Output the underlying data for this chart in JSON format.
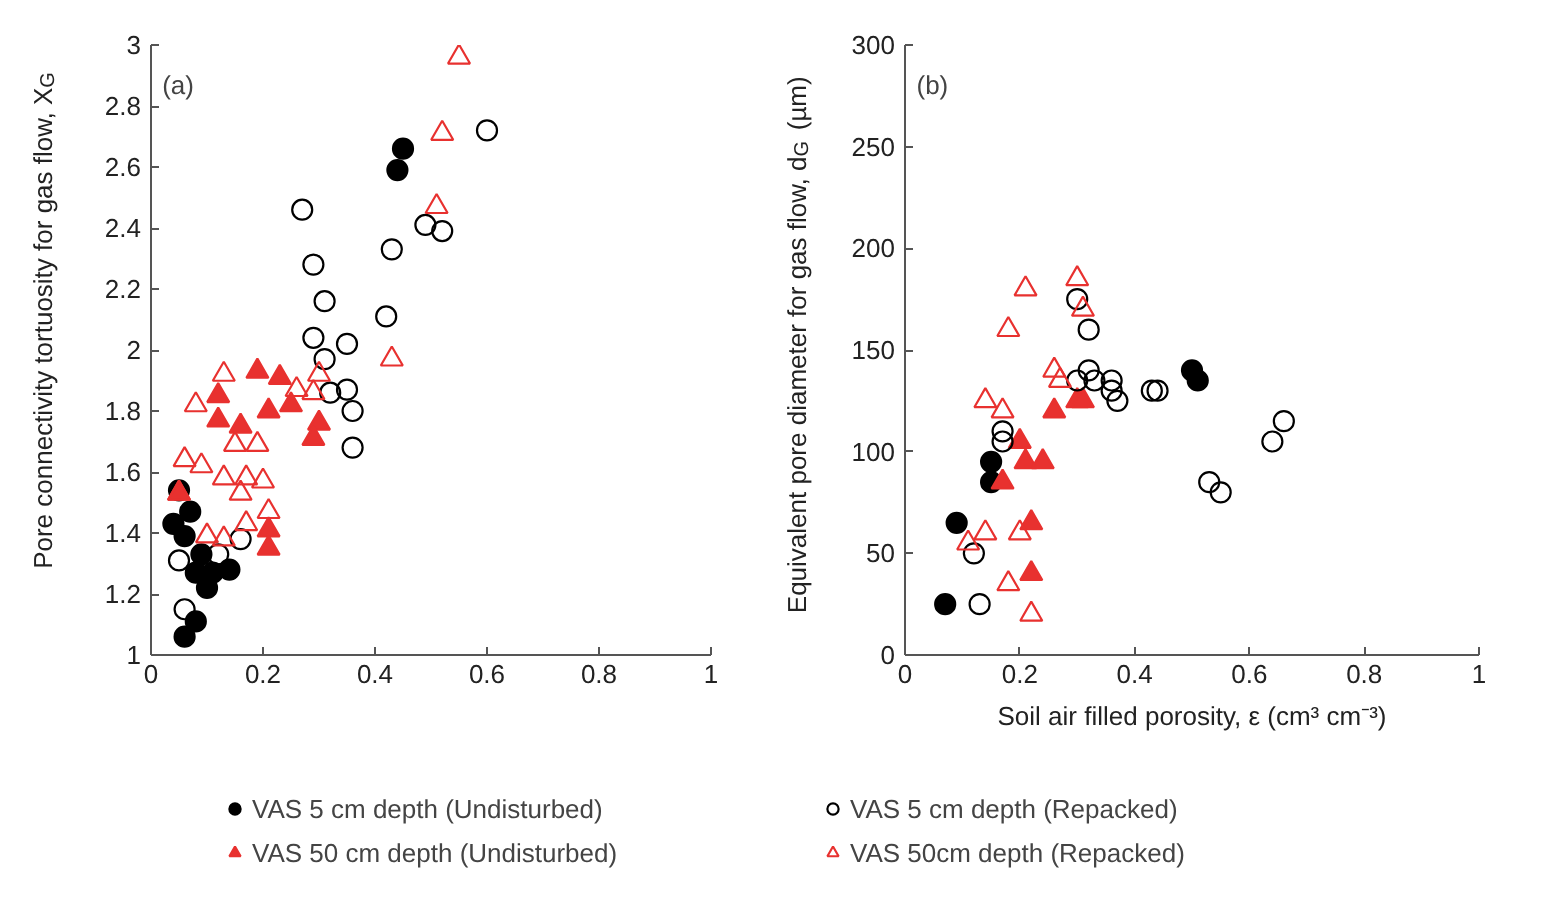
{
  "chart_data": [
    {
      "type": "scatter",
      "ylabel": "Pore connectivity tortuosity for gas flow, X$_{G}$",
      "annotations": [
        "(a)"
      ],
      "xlim": [
        0,
        1
      ],
      "ylim": [
        1,
        3
      ],
      "xticks": [
        0,
        0.2,
        0.4,
        0.6,
        0.8,
        1
      ],
      "yticks": [
        1,
        1.2,
        1.4,
        1.6,
        1.8,
        2,
        2.2,
        2.4,
        2.6,
        2.8,
        3
      ],
      "legend": "bottom",
      "series": [
        {
          "name": "VAS 5 cm depth (Undisturbed)",
          "color": "#000000",
          "marker": "circle",
          "x": [
            0.05,
            0.04,
            0.07,
            0.06,
            0.09,
            0.08,
            0.11,
            0.14,
            0.1,
            0.08,
            0.06,
            0.44,
            0.45
          ],
          "values": [
            1.54,
            1.43,
            1.47,
            1.39,
            1.33,
            1.27,
            1.27,
            1.28,
            1.22,
            1.11,
            1.06,
            2.59,
            2.66
          ]
        },
        {
          "name": "VAS 50 cm depth (Undisturbed)",
          "color": "#e8312f",
          "marker": "triangle",
          "x": [
            0.05,
            0.12,
            0.12,
            0.16,
            0.19,
            0.21,
            0.23,
            0.25,
            0.3,
            0.29,
            0.21,
            0.21
          ],
          "values": [
            1.53,
            1.77,
            1.85,
            1.75,
            1.93,
            1.8,
            1.91,
            1.82,
            1.76,
            1.71,
            1.41,
            1.35
          ]
        },
        {
          "color": "#000000",
          "marker": "circle",
          "x": [
            0.05,
            0.06,
            0.16,
            0.12,
            0.27,
            0.29,
            0.31,
            0.29,
            0.31,
            0.32,
            0.35,
            0.35,
            0.36,
            0.36,
            0.42,
            0.43,
            0.49,
            0.52,
            0.6
          ],
          "values": [
            1.31,
            1.15,
            1.38,
            1.33,
            2.46,
            2.28,
            2.16,
            2.04,
            1.97,
            1.86,
            2.02,
            1.87,
            1.8,
            1.68,
            2.11,
            2.33,
            2.41,
            2.39,
            2.72
          ]
        },
        {
          "color": "#e8312f",
          "marker": "triangle",
          "x": [
            0.06,
            0.09,
            0.08,
            0.13,
            0.15,
            0.19,
            0.13,
            0.17,
            0.16,
            0.2,
            0.21,
            0.17,
            0.1,
            0.13,
            0.05,
            0.26,
            0.3,
            0.29,
            0.43,
            0.51,
            0.52,
            0.55
          ],
          "values": [
            1.64,
            1.62,
            1.82,
            1.92,
            1.69,
            1.69,
            1.58,
            1.58,
            1.53,
            1.57,
            1.47,
            1.43,
            1.39,
            1.38,
            1.53,
            1.87,
            1.92,
            1.86,
            1.97,
            2.47,
            2.71,
            2.96
          ]
        }
      ]
    },
    {
      "type": "scatter",
      "xlabel": "Soil air filled porosity, ε (cm³ cm⁻³)",
      "ylabel": "Equivalent pore diameter for gas flow, d$_{G}$ (µm)",
      "annotations": [
        "(b)"
      ],
      "xlim": [
        0,
        1
      ],
      "ylim": [
        0,
        300
      ],
      "xticks": [
        0,
        0.2,
        0.4,
        0.6,
        0.8,
        1
      ],
      "yticks": [
        0,
        50,
        100,
        150,
        200,
        250,
        300
      ],
      "legend": "bottom",
      "series": [
        {
          "color": "#000000",
          "marker": "circle",
          "x": [
            0.07,
            0.09,
            0.15,
            0.15,
            0.5,
            0.51
          ],
          "values": [
            25,
            65,
            95,
            85,
            140,
            135
          ]
        },
        {
          "color": "#e8312f",
          "marker": "triangle",
          "x": [
            0.17,
            0.2,
            0.21,
            0.24,
            0.22,
            0.22,
            0.26,
            0.3,
            0.31
          ],
          "values": [
            85,
            105,
            95,
            95,
            65,
            40,
            120,
            125,
            125
          ]
        },
        {
          "name": "VAS 5 cm depth (Repacked)",
          "color": "#000000",
          "marker": "circle",
          "x": [
            0.13,
            0.12,
            0.17,
            0.17,
            0.3,
            0.32,
            0.3,
            0.32,
            0.33,
            0.36,
            0.36,
            0.37,
            0.43,
            0.44,
            0.53,
            0.55,
            0.64,
            0.66
          ],
          "values": [
            25,
            50,
            110,
            105,
            175,
            160,
            135,
            140,
            135,
            135,
            130,
            125,
            130,
            130,
            85,
            80,
            105,
            115
          ]
        },
        {
          "name": "VAS 50cm depth (Repacked)",
          "color": "#e8312f",
          "marker": "triangle",
          "x": [
            0.21,
            0.3,
            0.31,
            0.18,
            0.26,
            0.27,
            0.14,
            0.17,
            0.11,
            0.14,
            0.2,
            0.18,
            0.22
          ],
          "values": [
            180,
            185,
            170,
            160,
            140,
            135,
            125,
            120,
            55,
            60,
            60,
            35,
            20
          ]
        }
      ]
    }
  ]
}
